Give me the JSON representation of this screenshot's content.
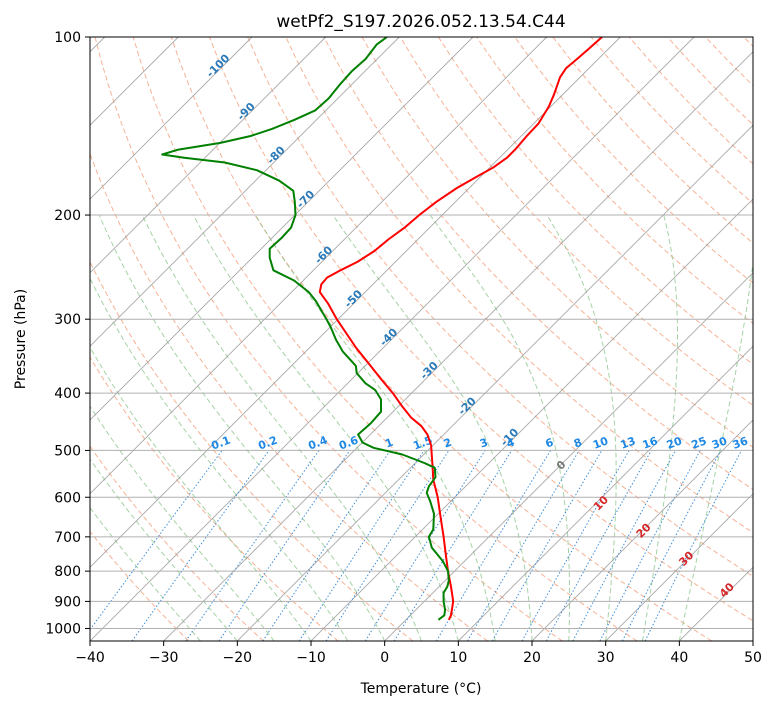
{
  "chart_data": {
    "type": "line",
    "chart_kind": "skew-T log-p diagram",
    "title": "wetPf2_S197.2026.052.13.54.C44",
    "xlabel": "Temperature (°C)",
    "ylabel": "Pressure (hPa)",
    "xlim": [
      -40,
      50
    ],
    "ylim": [
      1050,
      100
    ],
    "y_scale": "log",
    "grid": true,
    "x_ticks": [
      "−40",
      "−30",
      "−20",
      "−10",
      "0",
      "10",
      "20",
      "30",
      "40",
      "50"
    ],
    "y_ticks": [
      {
        "p": 100,
        "label": "100"
      },
      {
        "p": 200,
        "label": "200"
      },
      {
        "p": 300,
        "label": "300"
      },
      {
        "p": 400,
        "label": "400"
      },
      {
        "p": 500,
        "label": "500"
      },
      {
        "p": 600,
        "label": "600"
      },
      {
        "p": 700,
        "label": "700"
      },
      {
        "p": 800,
        "label": "800"
      },
      {
        "p": 900,
        "label": "900"
      },
      {
        "p": 1000,
        "label": "1000"
      }
    ],
    "series": [
      {
        "role": "temperature",
        "color": "#ff0000",
        "points": [
          [
            8.7,
            967
          ],
          [
            9.0,
            950
          ],
          [
            9.3,
            900
          ],
          [
            9.0,
            850
          ],
          [
            8.6,
            800
          ],
          [
            8.3,
            750
          ],
          [
            8.0,
            700
          ],
          [
            7.6,
            650
          ],
          [
            7.2,
            600
          ],
          [
            6.6,
            560
          ],
          [
            6.5,
            530
          ],
          [
            6.4,
            510
          ],
          [
            6.3,
            490
          ],
          [
            5.8,
            470
          ],
          [
            5.0,
            455
          ],
          [
            3.6,
            440
          ],
          [
            2.3,
            420
          ],
          [
            1.1,
            400
          ],
          [
            -0.4,
            380
          ],
          [
            -1.9,
            360
          ],
          [
            -3.9,
            335
          ],
          [
            -6.5,
            300
          ],
          [
            -7.7,
            282
          ],
          [
            -8.8,
            270
          ],
          [
            -8.6,
            262
          ],
          [
            -7.8,
            255
          ],
          [
            -6.0,
            248
          ],
          [
            -3.7,
            240
          ],
          [
            -1.4,
            230
          ],
          [
            0.5,
            220
          ],
          [
            2.7,
            210
          ],
          [
            4.7,
            200
          ],
          [
            7.0,
            190
          ],
          [
            9.8,
            180
          ],
          [
            12.6,
            172
          ],
          [
            14.8,
            166
          ],
          [
            16.6,
            160
          ],
          [
            17.7,
            155
          ],
          [
            19.3,
            147
          ],
          [
            20.9,
            140
          ],
          [
            22.3,
            131
          ],
          [
            23.0,
            125
          ],
          [
            23.8,
            117
          ],
          [
            24.6,
            113
          ],
          [
            26.1,
            109
          ],
          [
            27.6,
            105
          ],
          [
            29.5,
            100
          ]
        ]
      },
      {
        "role": "dewpoint",
        "color": "#008000",
        "points": [
          [
            7.3,
            967
          ],
          [
            8.1,
            950
          ],
          [
            8.2,
            930
          ],
          [
            8.0,
            900
          ],
          [
            8.0,
            870
          ],
          [
            8.5,
            850
          ],
          [
            8.7,
            830
          ],
          [
            8.6,
            800
          ],
          [
            7.9,
            770
          ],
          [
            6.4,
            730
          ],
          [
            6.0,
            700
          ],
          [
            6.6,
            680
          ],
          [
            6.7,
            640
          ],
          [
            6.2,
            610
          ],
          [
            5.7,
            590
          ],
          [
            6.0,
            575
          ],
          [
            6.9,
            555
          ],
          [
            6.8,
            535
          ],
          [
            5.4,
            525
          ],
          [
            2.4,
            508
          ],
          [
            -1.5,
            495
          ],
          [
            -3.0,
            485
          ],
          [
            -3.6,
            470
          ],
          [
            -1.9,
            450
          ],
          [
            -0.5,
            430
          ],
          [
            -0.5,
            410
          ],
          [
            -1.3,
            395
          ],
          [
            -2.6,
            385
          ],
          [
            -3.8,
            370
          ],
          [
            -3.9,
            360
          ],
          [
            -4.6,
            352
          ],
          [
            -5.7,
            340
          ],
          [
            -6.6,
            325
          ],
          [
            -7.3,
            310
          ],
          [
            -7.9,
            300
          ],
          [
            -8.6,
            290
          ],
          [
            -9.3,
            280
          ],
          [
            -10.3,
            270
          ],
          [
            -12.3,
            258
          ],
          [
            -15.1,
            248
          ],
          [
            -15.6,
            236
          ],
          [
            -15.6,
            228
          ],
          [
            -13.9,
            218
          ],
          [
            -12.7,
            210
          ],
          [
            -12.1,
            200
          ],
          [
            -12.2,
            190
          ],
          [
            -12.4,
            182
          ],
          [
            -14.3,
            175
          ],
          [
            -17.3,
            168
          ],
          [
            -21.7,
            163
          ],
          [
            -27.2,
            160
          ],
          [
            -30.2,
            158
          ],
          [
            -28.0,
            155
          ],
          [
            -22.3,
            151
          ],
          [
            -18.2,
            147
          ],
          [
            -15.3,
            143
          ],
          [
            -12.2,
            138
          ],
          [
            -9.4,
            133
          ],
          [
            -7.6,
            127
          ],
          [
            -6.0,
            120
          ],
          [
            -4.4,
            114
          ],
          [
            -2.6,
            109
          ],
          [
            -1.1,
            103
          ],
          [
            0.3,
            100
          ]
        ]
      }
    ],
    "isotherm_labels": [
      "-100",
      "-90",
      "-80",
      "-70",
      "-60",
      "-50",
      "-40",
      "-30",
      "-20",
      "-10"
    ],
    "mixing_ratio_labels": [
      "0.1",
      "0.2",
      "0.4",
      "0.6",
      "1",
      "1.5",
      "2",
      "3",
      "4",
      "6",
      "8",
      "10",
      "13",
      "16",
      "20",
      "25",
      "30",
      "36"
    ],
    "moist_adiabat_labels": [
      "0",
      "10",
      "20",
      "30",
      "40"
    ],
    "colors": {
      "temperature": "#ff0000",
      "dewpoint": "#008000",
      "grid": "#b0b0b0",
      "isotherm": "#999999",
      "isotherm_label": "#2a7ab9",
      "dry_adiabat": "#f4a582",
      "moist_adiabat": "#8fc78f",
      "mixing_ratio": "#3f8fd8",
      "mixing_ratio_label": "#1e88e5",
      "moist_label": "#d62728",
      "moist_label_zero": "#777777",
      "frame_edge": "#d2b48c"
    }
  }
}
